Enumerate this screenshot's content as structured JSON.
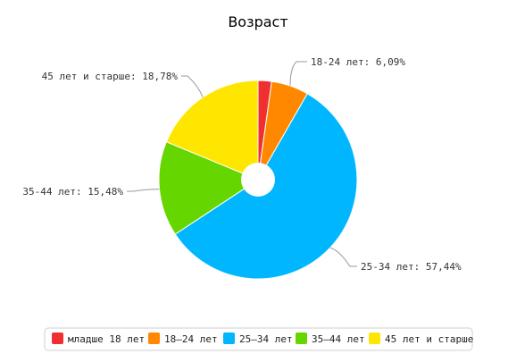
{
  "chart_data": {
    "type": "pie",
    "title": "Возраст",
    "categories": [
      "младше 18 лет",
      "18–24 лет",
      "25–34 лет",
      "35–44 лет",
      "45 лет и старше"
    ],
    "values": [
      2.21,
      6.09,
      57.44,
      15.48,
      18.78
    ],
    "colors": [
      "#f03030",
      "#ff8800",
      "#00b7ff",
      "#66d600",
      "#ffe600"
    ],
    "slice_labels": [
      null,
      "18-24 лет: 6,09%",
      "25-34 лет: 57,44%",
      "35-44 лет: 15,48%",
      "45 лет и старше: 18,78%"
    ],
    "legend": {
      "items": [
        "младше 18 лет",
        "18–24 лет",
        "25–34 лет",
        "35–44 лет",
        "45 лет и старше"
      ],
      "placement": "bottom"
    },
    "donut_hole": true
  }
}
